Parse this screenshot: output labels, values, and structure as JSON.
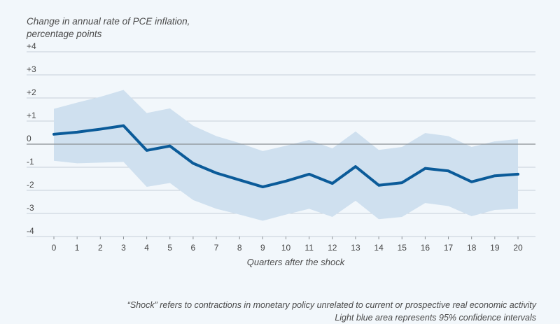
{
  "chart_data": {
    "type": "line",
    "ylabel_line1": "Change in annual rate of PCE inflation,",
    "ylabel_line2": "percentage points",
    "xlabel": "Quarters after the shock",
    "x": [
      0,
      1,
      2,
      3,
      4,
      5,
      6,
      7,
      8,
      9,
      10,
      11,
      12,
      13,
      14,
      15,
      16,
      17,
      18,
      19,
      20
    ],
    "y_ticks": [
      "+4",
      "+3",
      "+2",
      "+1",
      "0",
      "-1",
      "-2",
      "-3",
      "-4"
    ],
    "y_tick_values": [
      4,
      3,
      2,
      1,
      0,
      -1,
      -2,
      -3,
      -4
    ],
    "ylim": [
      -4,
      4
    ],
    "xlim": [
      0,
      20
    ],
    "series": [
      {
        "values": [
          0.43,
          0.52,
          0.65,
          0.8,
          -0.27,
          -0.08,
          -0.83,
          -1.25,
          -1.55,
          -1.85,
          -1.6,
          -1.3,
          -1.7,
          -0.97,
          -1.78,
          -1.67,
          -1.05,
          -1.16,
          -1.63,
          -1.37,
          -1.3
        ],
        "color": "#0b5b99"
      }
    ],
    "band": {
      "upper": [
        1.53,
        1.8,
        2.05,
        2.35,
        1.35,
        1.55,
        0.8,
        0.35,
        0.05,
        -0.3,
        -0.07,
        0.18,
        -0.18,
        0.55,
        -0.25,
        -0.12,
        0.48,
        0.35,
        -0.12,
        0.12,
        0.22
      ],
      "lower": [
        -0.72,
        -0.83,
        -0.8,
        -0.77,
        -1.85,
        -1.68,
        -2.42,
        -2.8,
        -3.05,
        -3.32,
        -3.05,
        -2.8,
        -3.15,
        -2.45,
        -3.25,
        -3.15,
        -2.55,
        -2.68,
        -3.12,
        -2.85,
        -2.8
      ],
      "color": "#cfe0ef"
    },
    "grid": true
  },
  "note_line1": "“Shock” refers to contractions in monetary policy unrelated to current or prospective real economic activity",
  "note_line2": "Light blue area represents 95% confidence intervals"
}
